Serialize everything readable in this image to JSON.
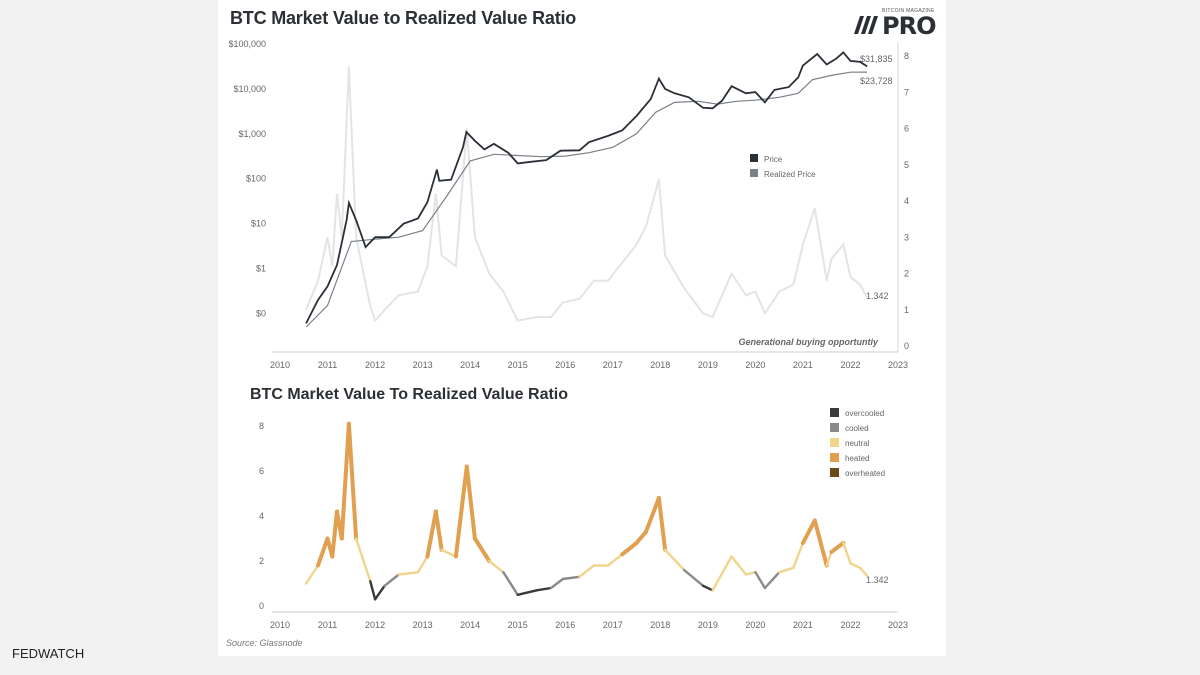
{
  "header": {
    "title": "BTC Market Value to Realized Value Ratio",
    "logo_small": "BITCOIN MAGAZINE",
    "logo_text": "PRO"
  },
  "chart_data": [
    {
      "type": "line",
      "title": "BTC Market Value to Realized Value Ratio",
      "y_left_scale": "log",
      "y_left_ticks": [
        "$100,000",
        "$10,000",
        "$1,000",
        "$100",
        "$10",
        "$1",
        "$0"
      ],
      "y_right_ticks": [
        "8",
        "7",
        "6",
        "5",
        "4",
        "3",
        "2",
        "1",
        "0"
      ],
      "x_ticks": [
        "2010",
        "2011",
        "2012",
        "2013",
        "2014",
        "2015",
        "2016",
        "2017",
        "2018",
        "2019",
        "2020",
        "2021",
        "2022",
        "2023"
      ],
      "legend": [
        "Price",
        "Realized Price"
      ],
      "legend_position": "right",
      "annotations": [
        "$31,835",
        "$23,728",
        "1.342",
        "Generational buying opportuntiy"
      ],
      "series": [
        {
          "name": "Price",
          "color": "#2b2f36",
          "points": [
            [
              2010.55,
              0.06
            ],
            [
              2010.8,
              0.2
            ],
            [
              2011.0,
              0.4
            ],
            [
              2011.2,
              1.2
            ],
            [
              2011.4,
              12
            ],
            [
              2011.45,
              29
            ],
            [
              2011.6,
              12
            ],
            [
              2011.8,
              3
            ],
            [
              2012.0,
              5
            ],
            [
              2012.3,
              5
            ],
            [
              2012.6,
              10
            ],
            [
              2012.9,
              13
            ],
            [
              2013.1,
              30
            ],
            [
              2013.3,
              160
            ],
            [
              2013.35,
              90
            ],
            [
              2013.6,
              95
            ],
            [
              2013.85,
              500
            ],
            [
              2013.92,
              1100
            ],
            [
              2014.1,
              700
            ],
            [
              2014.3,
              450
            ],
            [
              2014.5,
              600
            ],
            [
              2014.8,
              380
            ],
            [
              2015.0,
              220
            ],
            [
              2015.3,
              240
            ],
            [
              2015.6,
              260
            ],
            [
              2015.9,
              420
            ],
            [
              2016.3,
              430
            ],
            [
              2016.5,
              650
            ],
            [
              2016.9,
              900
            ],
            [
              2017.2,
              1200
            ],
            [
              2017.5,
              2500
            ],
            [
              2017.8,
              6000
            ],
            [
              2017.97,
              17000
            ],
            [
              2018.1,
              10000
            ],
            [
              2018.3,
              8000
            ],
            [
              2018.6,
              6500
            ],
            [
              2018.9,
              3800
            ],
            [
              2019.1,
              3700
            ],
            [
              2019.3,
              5500
            ],
            [
              2019.5,
              11500
            ],
            [
              2019.8,
              8000
            ],
            [
              2020.0,
              8500
            ],
            [
              2020.2,
              5000
            ],
            [
              2020.4,
              9500
            ],
            [
              2020.7,
              11000
            ],
            [
              2020.9,
              18000
            ],
            [
              2021.0,
              33000
            ],
            [
              2021.3,
              60000
            ],
            [
              2021.5,
              35000
            ],
            [
              2021.7,
              47000
            ],
            [
              2021.85,
              65000
            ],
            [
              2022.0,
              42000
            ],
            [
              2022.2,
              40000
            ],
            [
              2022.35,
              31835
            ]
          ]
        },
        {
          "name": "Realized Price",
          "color": "#7a8088",
          "points": [
            [
              2010.55,
              0.05
            ],
            [
              2011.0,
              0.15
            ],
            [
              2011.5,
              4
            ],
            [
              2012.0,
              4.5
            ],
            [
              2012.5,
              5
            ],
            [
              2013.0,
              7
            ],
            [
              2013.5,
              40
            ],
            [
              2014.0,
              250
            ],
            [
              2014.5,
              350
            ],
            [
              2015.0,
              330
            ],
            [
              2015.5,
              310
            ],
            [
              2016.0,
              320
            ],
            [
              2016.5,
              380
            ],
            [
              2017.0,
              500
            ],
            [
              2017.5,
              1000
            ],
            [
              2017.9,
              3000
            ],
            [
              2018.3,
              5000
            ],
            [
              2018.8,
              5300
            ],
            [
              2019.2,
              4600
            ],
            [
              2019.6,
              5300
            ],
            [
              2020.0,
              5600
            ],
            [
              2020.5,
              6500
            ],
            [
              2020.9,
              8000
            ],
            [
              2021.2,
              16000
            ],
            [
              2021.6,
              20000
            ],
            [
              2022.0,
              23500
            ],
            [
              2022.35,
              23728
            ]
          ]
        },
        {
          "name": "MVRV",
          "color": "#e4e4e4",
          "axis": "right",
          "points": [
            [
              2010.55,
              1
            ],
            [
              2010.8,
              1.8
            ],
            [
              2011.0,
              3.0
            ],
            [
              2011.1,
              2.2
            ],
            [
              2011.2,
              4.2
            ],
            [
              2011.3,
              3.0
            ],
            [
              2011.45,
              7.7
            ],
            [
              2011.6,
              3.0
            ],
            [
              2011.9,
              1.1
            ],
            [
              2012.0,
              0.7
            ],
            [
              2012.2,
              1.0
            ],
            [
              2012.5,
              1.4
            ],
            [
              2012.9,
              1.5
            ],
            [
              2013.1,
              2.2
            ],
            [
              2013.28,
              4.2
            ],
            [
              2013.4,
              2.5
            ],
            [
              2013.7,
              2.2
            ],
            [
              2013.93,
              6.0
            ],
            [
              2014.1,
              3.0
            ],
            [
              2014.4,
              2.0
            ],
            [
              2014.7,
              1.5
            ],
            [
              2015.0,
              0.7
            ],
            [
              2015.4,
              0.8
            ],
            [
              2015.7,
              0.8
            ],
            [
              2015.95,
              1.2
            ],
            [
              2016.3,
              1.3
            ],
            [
              2016.6,
              1.8
            ],
            [
              2016.9,
              1.8
            ],
            [
              2017.2,
              2.3
            ],
            [
              2017.5,
              2.8
            ],
            [
              2017.7,
              3.3
            ],
            [
              2017.97,
              4.6
            ],
            [
              2018.1,
              2.5
            ],
            [
              2018.5,
              1.6
            ],
            [
              2018.9,
              0.9
            ],
            [
              2019.1,
              0.8
            ],
            [
              2019.5,
              2.0
            ],
            [
              2019.8,
              1.4
            ],
            [
              2020.0,
              1.5
            ],
            [
              2020.2,
              0.9
            ],
            [
              2020.5,
              1.5
            ],
            [
              2020.8,
              1.7
            ],
            [
              2021.0,
              2.8
            ],
            [
              2021.25,
              3.8
            ],
            [
              2021.5,
              1.8
            ],
            [
              2021.6,
              2.4
            ],
            [
              2021.85,
              2.8
            ],
            [
              2022.0,
              1.9
            ],
            [
              2022.2,
              1.7
            ],
            [
              2022.35,
              1.342
            ]
          ]
        }
      ]
    },
    {
      "type": "area",
      "title": "BTC Market Value To Realized Value Ratio",
      "y_ticks": [
        "8",
        "6",
        "4",
        "2",
        "0"
      ],
      "ylim": [
        0,
        8
      ],
      "x_ticks": [
        "2010",
        "2011",
        "2012",
        "2013",
        "2014",
        "2015",
        "2016",
        "2017",
        "2018",
        "2019",
        "2020",
        "2021",
        "2022",
        "2023"
      ],
      "legend": [
        {
          "label": "overcooled",
          "color": "#3a3a3a"
        },
        {
          "label": "cooled",
          "color": "#8a8a8a"
        },
        {
          "label": "neutral",
          "color": "#f2d58c"
        },
        {
          "label": "heated",
          "color": "#e0a050"
        },
        {
          "label": "overheated",
          "color": "#6b4a1a"
        }
      ],
      "legend_position": "top-right",
      "annotation": "1.342",
      "source": "Source: Glassnode",
      "series": [
        {
          "name": "MVRV",
          "points": [
            [
              2010.55,
              1
            ],
            [
              2010.8,
              1.8
            ],
            [
              2011.0,
              3.0
            ],
            [
              2011.1,
              2.2
            ],
            [
              2011.2,
              4.2
            ],
            [
              2011.3,
              3.0
            ],
            [
              2011.45,
              8.1
            ],
            [
              2011.6,
              3.0
            ],
            [
              2011.9,
              1.1
            ],
            [
              2012.0,
              0.3
            ],
            [
              2012.2,
              0.9
            ],
            [
              2012.5,
              1.4
            ],
            [
              2012.9,
              1.5
            ],
            [
              2013.1,
              2.2
            ],
            [
              2013.28,
              4.2
            ],
            [
              2013.4,
              2.5
            ],
            [
              2013.7,
              2.2
            ],
            [
              2013.93,
              6.2
            ],
            [
              2014.1,
              3.0
            ],
            [
              2014.4,
              2.0
            ],
            [
              2014.7,
              1.5
            ],
            [
              2015.0,
              0.5
            ],
            [
              2015.4,
              0.7
            ],
            [
              2015.7,
              0.8
            ],
            [
              2015.95,
              1.2
            ],
            [
              2016.3,
              1.3
            ],
            [
              2016.6,
              1.8
            ],
            [
              2016.9,
              1.8
            ],
            [
              2017.2,
              2.3
            ],
            [
              2017.5,
              2.8
            ],
            [
              2017.7,
              3.3
            ],
            [
              2017.97,
              4.8
            ],
            [
              2018.1,
              2.5
            ],
            [
              2018.5,
              1.6
            ],
            [
              2018.9,
              0.9
            ],
            [
              2019.1,
              0.7
            ],
            [
              2019.5,
              2.2
            ],
            [
              2019.8,
              1.4
            ],
            [
              2020.0,
              1.5
            ],
            [
              2020.2,
              0.8
            ],
            [
              2020.5,
              1.5
            ],
            [
              2020.8,
              1.7
            ],
            [
              2021.0,
              2.8
            ],
            [
              2021.25,
              3.8
            ],
            [
              2021.5,
              1.8
            ],
            [
              2021.6,
              2.4
            ],
            [
              2021.85,
              2.8
            ],
            [
              2022.0,
              1.9
            ],
            [
              2022.2,
              1.7
            ],
            [
              2022.35,
              1.342
            ]
          ]
        }
      ]
    }
  ],
  "footer": {
    "source": "Source: Glassnode",
    "brand": "FEDWATCH"
  }
}
